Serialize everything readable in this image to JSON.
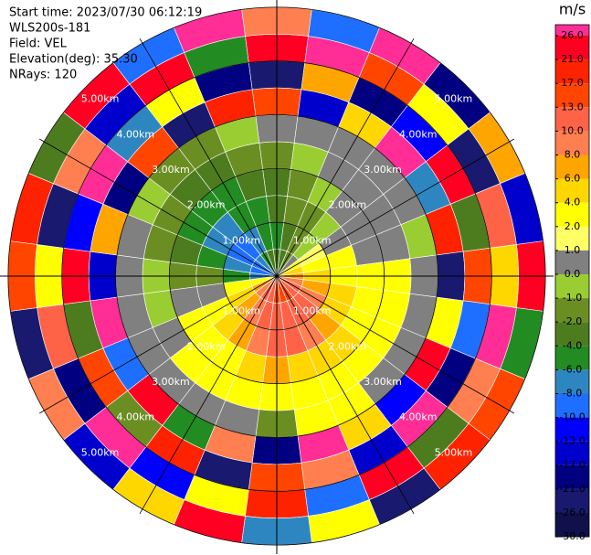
{
  "chart_data": {
    "type": "ppi",
    "info": [
      "Start time: 2023/07/30 06:12:19",
      "WLS200s-181",
      "Field: VEL",
      "Elevation(deg): 35.30",
      "NRays: 120"
    ],
    "colorbar_title": "m/s",
    "colorbar_ticks": [
      {
        "value": 26,
        "label": "26.0"
      },
      {
        "value": 21,
        "label": "21.0"
      },
      {
        "value": 17,
        "label": "17.0"
      },
      {
        "value": 13,
        "label": "13.0"
      },
      {
        "value": 10,
        "label": "10.0"
      },
      {
        "value": 8,
        "label": "8.0"
      },
      {
        "value": 6,
        "label": "6.0"
      },
      {
        "value": 4,
        "label": "4.0"
      },
      {
        "value": 2,
        "label": "2.0"
      },
      {
        "value": 1,
        "label": "1.0"
      },
      {
        "value": 0,
        "label": "0.0"
      },
      {
        "value": -1,
        "label": "-1.0"
      },
      {
        "value": -2,
        "label": "-2.0"
      },
      {
        "value": -4,
        "label": "-4.0"
      },
      {
        "value": -6,
        "label": "-6.0"
      },
      {
        "value": -8,
        "label": "-8.0"
      },
      {
        "value": -10,
        "label": "-10.0"
      },
      {
        "value": -13,
        "label": "-13.0"
      },
      {
        "value": -17,
        "label": "-17.0"
      },
      {
        "value": -21,
        "label": "-21.0"
      },
      {
        "value": -26,
        "label": "-26.0"
      },
      {
        "value": -30,
        "label": "-30.0"
      }
    ],
    "colors": [
      "#ff2d95",
      "#ff0022",
      "#ff2200",
      "#ff4500",
      "#ff6347",
      "#ff7f50",
      "#ffa500",
      "#ffd700",
      "#ffff00",
      "#ffff66",
      "#808080",
      "#9acd32",
      "#6b8e23",
      "#4d7c1f",
      "#228b22",
      "#2e86c1",
      "#1e6fff",
      "#0000ff",
      "#0000cd",
      "#000080",
      "#191970",
      "#10104a"
    ],
    "rlim": [
      0,
      5.1
    ],
    "rings": [
      {
        "value": 1,
        "label": "1.00km"
      },
      {
        "value": 2,
        "label": "2.00km"
      },
      {
        "value": 3,
        "label": "3.00km"
      },
      {
        "value": 4,
        "label": "4.00km"
      },
      {
        "value": 5,
        "label": "5.00km"
      }
    ],
    "spokes_deg": 30,
    "azimuths": [
      0,
      15,
      30,
      45,
      60,
      75,
      90,
      105,
      120,
      135,
      150,
      165,
      180,
      195,
      210,
      225,
      240,
      255,
      270,
      285,
      300,
      315,
      330,
      345
    ],
    "gate_edges": [
      0,
      0.5,
      1,
      1.5,
      2,
      2.5,
      3,
      3.5,
      4,
      4.5,
      5
    ],
    "values": [
      [
        -4,
        -6,
        -4,
        -4,
        -2,
        0,
        13,
        -26,
        21,
        8
      ],
      [
        -4,
        -4,
        -2,
        -2,
        -1,
        0,
        -17,
        6,
        26,
        -10
      ],
      [
        -2,
        -2,
        -2,
        -1,
        0,
        0,
        4,
        -21,
        13,
        26
      ],
      [
        0,
        -1,
        -1,
        0,
        0,
        0,
        26,
        -13,
        2,
        -21
      ],
      [
        2,
        1,
        0,
        0,
        0,
        0,
        -8,
        21,
        -26,
        6
      ],
      [
        4,
        2,
        2,
        0,
        0,
        -1,
        17,
        -4,
        10,
        -17
      ],
      [
        6,
        4,
        2,
        2,
        2,
        0,
        -26,
        13,
        4,
        21
      ],
      [
        8,
        6,
        4,
        2,
        2,
        0,
        2,
        -10,
        26,
        -6
      ],
      [
        10,
        8,
        4,
        2,
        2,
        0,
        21,
        -21,
        8,
        13
      ],
      [
        10,
        10,
        6,
        4,
        2,
        0,
        -13,
        26,
        -4,
        17
      ],
      [
        13,
        10,
        8,
        4,
        2,
        2,
        4,
        -17,
        21,
        -26
      ],
      [
        13,
        10,
        10,
        4,
        2,
        2,
        26,
        8,
        -10,
        2
      ],
      [
        13,
        10,
        10,
        6,
        2,
        -2,
        -21,
        13,
        17,
        -8
      ],
      [
        10,
        10,
        8,
        4,
        2,
        0,
        8,
        -26,
        2,
        21
      ],
      [
        10,
        8,
        6,
        2,
        2,
        0,
        -6,
        17,
        -13,
        4
      ],
      [
        8,
        6,
        4,
        2,
        2,
        0,
        21,
        -2,
        26,
        -17
      ],
      [
        6,
        4,
        2,
        2,
        0,
        0,
        -10,
        13,
        -21,
        8
      ],
      [
        2,
        2,
        0,
        0,
        -1,
        0,
        26,
        -4,
        10,
        -26
      ],
      [
        -8,
        -6,
        -2,
        -2,
        -1,
        0,
        -17,
        21,
        2,
        13
      ],
      [
        -10,
        -8,
        -6,
        -4,
        -2,
        0,
        6,
        -13,
        -26,
        17
      ],
      [
        -10,
        -10,
        -8,
        -6,
        -2,
        -1,
        -21,
        26,
        8,
        -4
      ],
      [
        -8,
        -10,
        -8,
        -6,
        -4,
        -2,
        13,
        -8,
        -17,
        21
      ],
      [
        -6,
        -8,
        -6,
        -6,
        -4,
        -2,
        -26,
        2,
        21,
        -10
      ],
      [
        -4,
        -6,
        -6,
        -4,
        -2,
        -1,
        17,
        -21,
        -6,
        26
      ]
    ]
  }
}
